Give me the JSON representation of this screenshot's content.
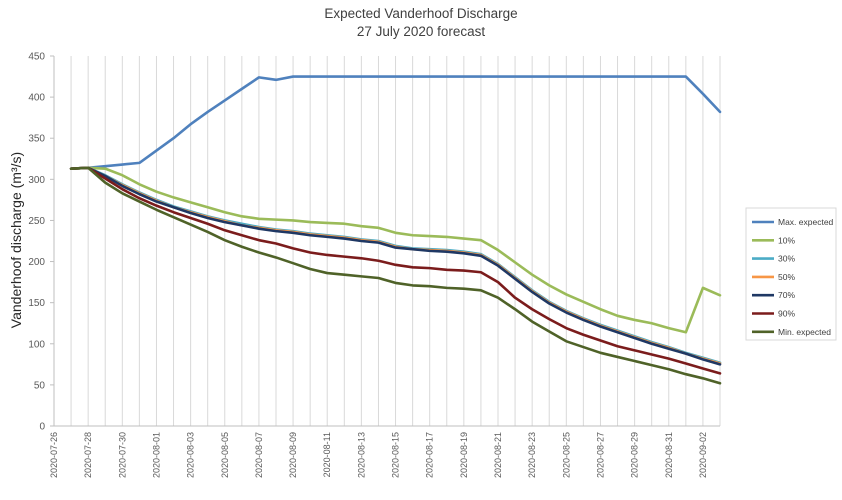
{
  "chart_data": {
    "type": "line",
    "title": "Expected Vanderhoof Discharge",
    "subtitle": "27 July 2020 forecast",
    "xlabel": "",
    "ylabel": "Vanderhoof discharge (m³/s)",
    "ylim": [
      0,
      450
    ],
    "yticks": [
      0,
      50,
      100,
      150,
      200,
      250,
      300,
      350,
      400,
      450
    ],
    "xlim": [
      "2020-07-26",
      "2020-09-03"
    ],
    "xtick_labels": [
      "2020-07-26",
      "2020-07-28",
      "2020-07-30",
      "2020-08-01",
      "2020-08-03",
      "2020-08-05",
      "2020-08-07",
      "2020-08-09",
      "2020-08-11",
      "2020-08-13",
      "2020-08-15",
      "2020-08-17",
      "2020-08-19",
      "2020-08-21",
      "2020-08-23",
      "2020-08-25",
      "2020-08-27",
      "2020-08-29",
      "2020-08-31",
      "2020-09-02"
    ],
    "grid": "vertical",
    "legend_position": "right",
    "x": [
      "2020-07-27",
      "2020-07-28",
      "2020-07-29",
      "2020-07-30",
      "2020-07-31",
      "2020-08-01",
      "2020-08-02",
      "2020-08-03",
      "2020-08-04",
      "2020-08-05",
      "2020-08-06",
      "2020-08-07",
      "2020-08-08",
      "2020-08-09",
      "2020-08-10",
      "2020-08-11",
      "2020-08-12",
      "2020-08-13",
      "2020-08-14",
      "2020-08-15",
      "2020-08-16",
      "2020-08-17",
      "2020-08-18",
      "2020-08-19",
      "2020-08-20",
      "2020-08-21",
      "2020-08-22",
      "2020-08-23",
      "2020-08-24",
      "2020-08-25",
      "2020-08-26",
      "2020-08-27",
      "2020-08-28",
      "2020-08-29",
      "2020-08-30",
      "2020-08-31",
      "2020-09-01",
      "2020-09-02",
      "2020-09-03"
    ],
    "series": [
      {
        "name": "Max. expected",
        "color": "#4f81bd",
        "values": [
          313,
          314,
          316,
          318,
          320,
          335,
          350,
          367,
          382,
          396,
          410,
          424,
          421,
          425,
          425,
          425,
          425,
          425,
          425,
          425,
          425,
          425,
          425,
          425,
          425,
          425,
          425,
          425,
          425,
          425,
          425,
          425,
          425,
          425,
          425,
          425,
          425,
          404,
          382
        ]
      },
      {
        "name": "10%",
        "color": "#9bbb59",
        "values": [
          313,
          314,
          313,
          305,
          294,
          285,
          278,
          272,
          266,
          260,
          255,
          252,
          251,
          250,
          248,
          247,
          246,
          243,
          241,
          235,
          232,
          231,
          230,
          228,
          226,
          214,
          199,
          184,
          171,
          160,
          151,
          142,
          134,
          129,
          125,
          119,
          114,
          168,
          159
        ]
      },
      {
        "name": "30%",
        "color": "#4bacc6",
        "values": [
          313,
          314,
          305,
          294,
          284,
          275,
          267,
          261,
          255,
          250,
          246,
          242,
          239,
          237,
          234,
          232,
          230,
          227,
          225,
          219,
          216,
          215,
          214,
          212,
          209,
          197,
          181,
          165,
          151,
          140,
          131,
          123,
          116,
          109,
          102,
          96,
          89,
          83,
          77
        ]
      },
      {
        "name": "50%",
        "color": "#f79646",
        "values": [
          313,
          314,
          304,
          293,
          283,
          274,
          266,
          260,
          254,
          249,
          244,
          241,
          238,
          236,
          233,
          231,
          229,
          226,
          224,
          218,
          215,
          214,
          213,
          211,
          208,
          196,
          180,
          164,
          150,
          139,
          130,
          122,
          115,
          108,
          101,
          95,
          88,
          82,
          76
        ]
      },
      {
        "name": "70%",
        "color": "#1f3864",
        "values": [
          313,
          314,
          304,
          292,
          282,
          273,
          266,
          259,
          253,
          248,
          244,
          240,
          237,
          235,
          232,
          230,
          228,
          225,
          223,
          217,
          215,
          213,
          212,
          210,
          207,
          195,
          179,
          163,
          149,
          138,
          129,
          121,
          114,
          107,
          100,
          94,
          88,
          81,
          75
        ]
      },
      {
        "name": "90%",
        "color": "#7b1c1c",
        "values": [
          313,
          314,
          301,
          288,
          277,
          268,
          260,
          253,
          246,
          238,
          232,
          226,
          222,
          216,
          211,
          208,
          206,
          204,
          201,
          196,
          193,
          192,
          190,
          189,
          187,
          175,
          156,
          142,
          130,
          119,
          111,
          104,
          97,
          92,
          87,
          82,
          76,
          70,
          64
        ]
      },
      {
        "name": "Min. expected",
        "color": "#4f6228",
        "values": [
          313,
          314,
          296,
          283,
          273,
          263,
          254,
          245,
          236,
          226,
          218,
          211,
          205,
          198,
          191,
          186,
          184,
          182,
          180,
          174,
          171,
          170,
          168,
          167,
          165,
          156,
          142,
          127,
          115,
          103,
          96,
          89,
          84,
          79,
          74,
          69,
          63,
          58,
          52
        ]
      }
    ]
  }
}
